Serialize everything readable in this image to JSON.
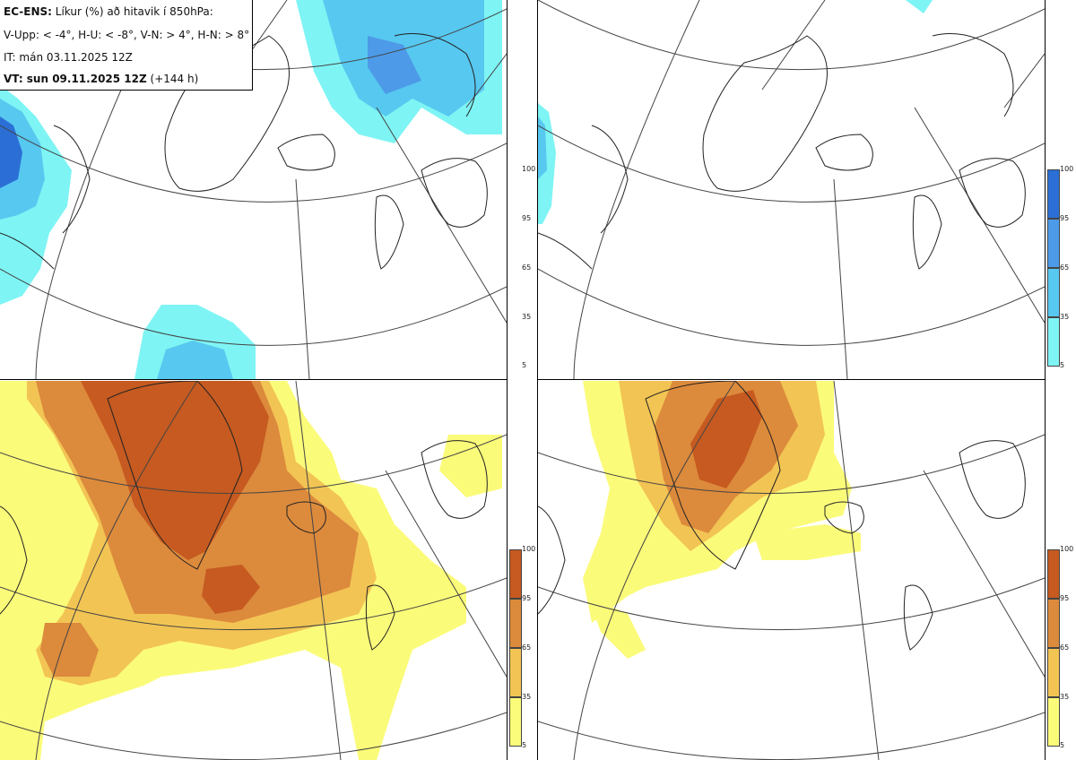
{
  "header": {
    "model_label": "EC-ENS:",
    "title_rest": "Líkur (%) að hitavik í 850hPa:",
    "thresholds": "V-Upp: < -4°, H-U: < -8°, V-N: > 4°, H-N: > 8°",
    "init_time": "IT: mán 03.11.2025 12Z",
    "valid_label": "VT: sun 09.11.2025 12Z",
    "lead": "(+144 h)"
  },
  "panels": [
    {
      "id": "top-left",
      "variable": "V-Upp",
      "colormap": "blue"
    },
    {
      "id": "top-right",
      "variable": "H-U",
      "colormap": "blue"
    },
    {
      "id": "bottom-left",
      "variable": "V-N",
      "colormap": "warm"
    },
    {
      "id": "bottom-right",
      "variable": "H-N",
      "colormap": "warm"
    }
  ],
  "colorbars": {
    "ticks": [
      "100",
      "95",
      "65",
      "35",
      "5"
    ],
    "blue_colors": [
      "#2b6fd6",
      "#4d9ae8",
      "#57c8f0",
      "#7ff4f4"
    ],
    "warm_colors": [
      "#c65a20",
      "#dc8a3c",
      "#f2c454",
      "#fbfb7a"
    ]
  }
}
